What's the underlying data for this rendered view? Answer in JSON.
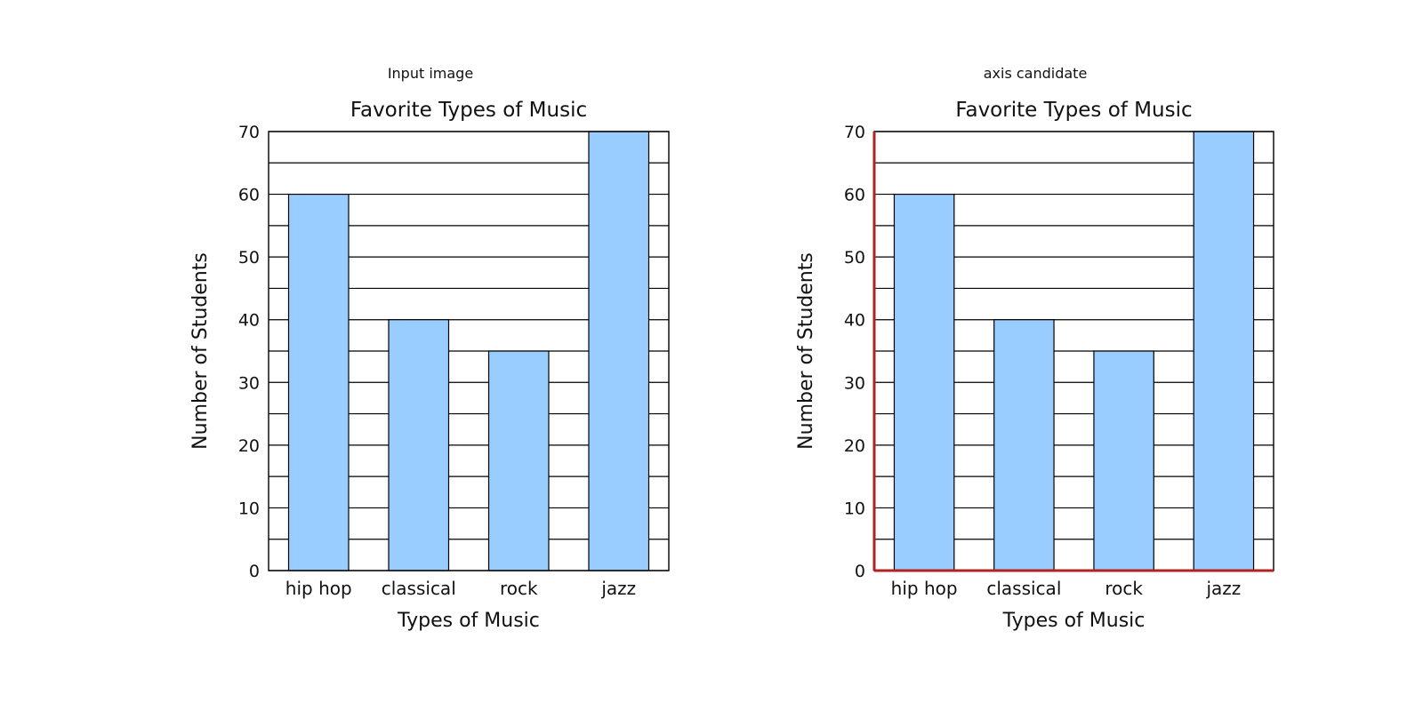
{
  "panels": [
    {
      "caption": "Input image",
      "highlight_axes": false
    },
    {
      "caption": "axis candidate",
      "highlight_axes": true
    }
  ],
  "axis_highlight_color": "#b22222",
  "chart_data": [
    {
      "type": "bar",
      "title": "Favorite Types of Music",
      "xlabel": "Types of Music",
      "ylabel": "Number of Students",
      "categories": [
        "hip hop",
        "classical",
        "rock",
        "jazz"
      ],
      "values": [
        60,
        40,
        35,
        70
      ],
      "ylim": [
        0,
        70
      ],
      "yticks": [
        0,
        10,
        20,
        30,
        40,
        50,
        60,
        70
      ],
      "grid_step": 5,
      "grid": true,
      "bar_color": "#99ccff"
    },
    {
      "type": "bar",
      "title": "Favorite Types of Music",
      "xlabel": "Types of Music",
      "ylabel": "Number of Students",
      "categories": [
        "hip hop",
        "classical",
        "rock",
        "jazz"
      ],
      "values": [
        60,
        40,
        35,
        70
      ],
      "ylim": [
        0,
        70
      ],
      "yticks": [
        0,
        10,
        20,
        30,
        40,
        50,
        60,
        70
      ],
      "grid_step": 5,
      "grid": true,
      "bar_color": "#99ccff"
    }
  ]
}
